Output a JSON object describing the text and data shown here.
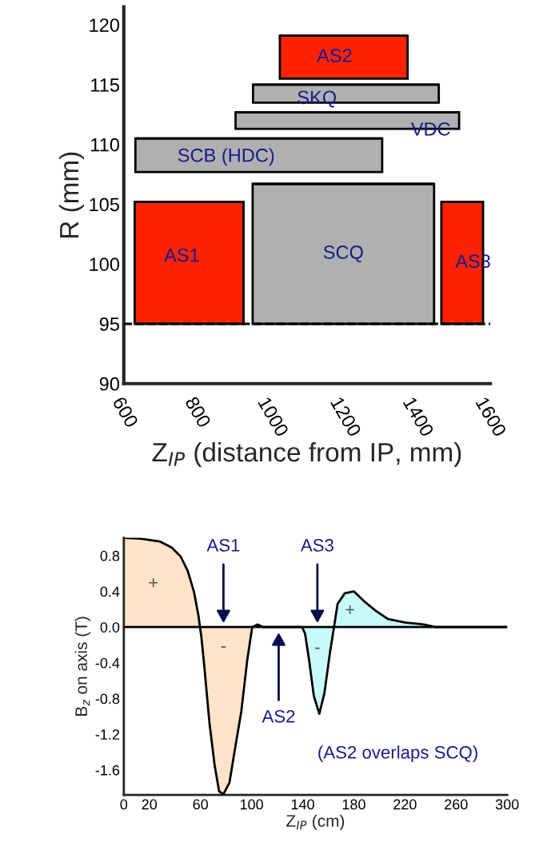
{
  "chart_data": [
    {
      "type": "bar",
      "ylabel": "R (mm)",
      "xlabel": "Z$_{IP}$ (distance from IP, mm)",
      "x": [
        780,
        972,
        1205,
        1206,
        1212,
        1216,
        1532.5
      ],
      "xerrors": [
        150,
        340,
        250,
        176,
        256,
        308,
        57.5
      ],
      "base": [
        95,
        107.7,
        95,
        115.5,
        113.5,
        111.3,
        95
      ],
      "values": [
        10.2,
        2.8,
        11.7,
        3.6,
        1.5,
        1.4,
        10.2
      ],
      "colors": [
        "#ff2200",
        "#b0b0b0",
        "#b0b0b0",
        "#ff2200",
        "#b0b0b0",
        "#b0b0b0",
        "#ff2200"
      ],
      "xlim": [
        600,
        1610
      ],
      "ylim": [
        90,
        121.5
      ],
      "xticks": [
        600,
        800,
        1000,
        1200,
        1400,
        1600
      ],
      "yticks": [
        90,
        95,
        100,
        105,
        110,
        115,
        120
      ],
      "ref_lines": [
        {
          "axis": "y",
          "value": 95,
          "color": "#000000",
          "line_style": "dashed"
        }
      ],
      "annotations": [
        "AS1",
        "SCB (HDC)",
        "SCQ",
        "AS2",
        "SKQ",
        "VDC",
        "AS3"
      ]
    },
    {
      "type": "area",
      "ylabel": "B$_{z}$ on axis (T)",
      "xlabel": "Z$_{IP}$ (cm)",
      "series": [
        {
          "color": "#fde3c8",
          "x": [
            0,
            13,
            28,
            37.5,
            44.5,
            50,
            55,
            58.4,
            60.7,
            63,
            67,
            71,
            74.6,
            78,
            82.7,
            87.3,
            92,
            96.6,
            100.5,
            104.7,
            109
          ],
          "values": [
            1.0,
            0.99,
            0.96,
            0.89,
            0.79,
            0.63,
            0.39,
            0.13,
            -0.11,
            -0.44,
            -1.07,
            -1.54,
            -1.84,
            -1.87,
            -1.74,
            -1.34,
            -0.94,
            -0.37,
            0,
            0.03,
            0
          ]
        },
        {
          "color": "#c8fafa",
          "x": [
            109,
            139.5,
            141.8,
            145,
            148.7,
            153,
            157,
            161.5,
            164.5,
            167.3,
            173,
            180,
            188,
            197.4,
            206.7,
            220.6,
            234.5,
            243.7,
            300
          ],
          "values": [
            0,
            0,
            -0.07,
            -0.37,
            -0.77,
            -0.97,
            -0.74,
            -0.27,
            0,
            0.26,
            0.38,
            0.4,
            0.29,
            0.18,
            0.09,
            0.05,
            0.03,
            0,
            0
          ]
        }
      ],
      "xlim": [
        0,
        300
      ],
      "ylim": [
        -1.88,
        1.0
      ],
      "xticks": [
        0,
        20,
        60,
        100,
        140,
        180,
        220,
        260,
        300
      ],
      "yticks": [
        {
          "value": 0.8,
          "label": "0.8"
        },
        {
          "value": 0.4,
          "label": "0.4"
        },
        {
          "value": 0,
          "label": "0.0"
        },
        {
          "value": -0.4,
          "label": "-0.4"
        },
        {
          "value": -0.8,
          "label": "-0.8"
        },
        {
          "value": -1.2,
          "label": "-1.2"
        },
        {
          "value": -1.6,
          "label": "-1.6"
        }
      ],
      "ref_lines": [
        {
          "axis": "y",
          "value": 0,
          "color": "#000000",
          "line_style": "solid"
        }
      ],
      "annotations": [
        "AS1",
        "AS2",
        "AS3",
        "+",
        "-",
        "-",
        "+",
        "(AS2 overlaps SCQ)"
      ]
    }
  ]
}
